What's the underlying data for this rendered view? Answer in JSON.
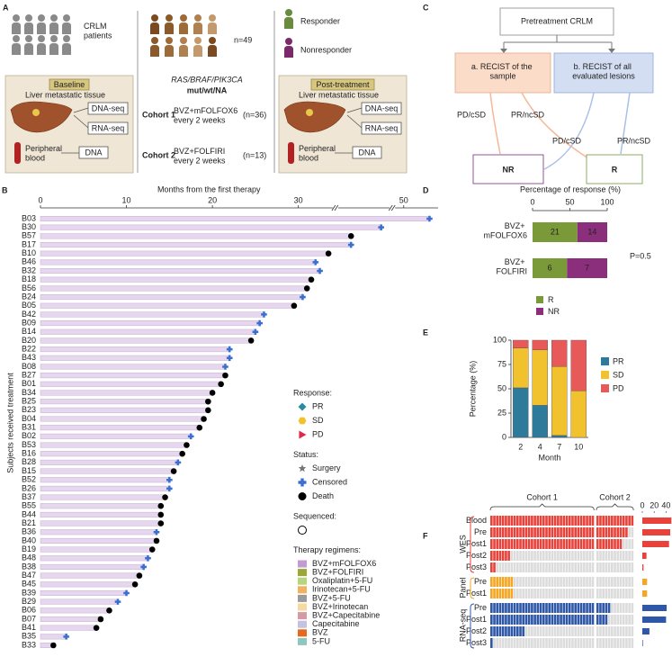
{
  "panel_labels": {
    "a": "A",
    "b": "B",
    "c": "C",
    "d": "D",
    "e": "E",
    "f": "F"
  },
  "panel_a": {
    "patients": "CRLM patients",
    "n": "n=49",
    "responder": "Responder",
    "nonresponder": "Nonresponder",
    "genes": "RAS/BRAF/PIK3CA",
    "status": "mut/wt/NA",
    "cohorts": [
      {
        "name": "Cohort 1",
        "regimen": "BVZ+mFOLFOX6 every 2 weeks",
        "n": "(n=36)"
      },
      {
        "name": "Cohort 2",
        "regimen": "BVZ+FOLFIRI every 2 weeks",
        "n": "(n=13)"
      }
    ],
    "baseline": {
      "title": "Baseline",
      "tissue": "Liver metastatic tissue",
      "dna_seq": "DNA-seq",
      "rna_seq": "RNA-seq",
      "blood": "Peripheral blood",
      "dna": "DNA"
    },
    "post": {
      "title": "Post-treatment",
      "tissue": "Liver metastatic tissue",
      "dna_seq": "DNA-seq",
      "rna_seq": "RNA-seq",
      "blood": "Peripheral blood",
      "dna": "DNA"
    }
  },
  "panel_c": {
    "root": "Pretreatment CRLM",
    "a": "a. RECIST of the sample",
    "b": "b. RECIST of all evaluated lesions",
    "edges": [
      "PD/cSD",
      "PR/ncSD",
      "PD/cSD",
      "PR/ncSD"
    ],
    "nr": "NR",
    "r": "R"
  },
  "chart_data": [
    {
      "type": "swimmer",
      "title": "Months from the first therapy",
      "ylabel": "Subjects received treatment",
      "xlim": [
        0,
        54
      ],
      "xticks": [
        0,
        10,
        20,
        30,
        50
      ],
      "xbreaks": [
        [
          34,
          40
        ],
        [
          46,
          49
        ]
      ],
      "bar_color": "#e6d6ee",
      "subjects": [
        {
          "id": "B03",
          "months": 53,
          "end": "censored"
        },
        {
          "id": "B30",
          "months": 45,
          "end": "censored"
        },
        {
          "id": "B57",
          "months": 41.5,
          "end": "death"
        },
        {
          "id": "B17",
          "months": 41.5,
          "end": "censored"
        },
        {
          "id": "B10",
          "months": 33.5,
          "end": "death"
        },
        {
          "id": "B46",
          "months": 32,
          "end": "censored"
        },
        {
          "id": "B32",
          "months": 32.5,
          "end": "censored"
        },
        {
          "id": "B18",
          "months": 31.5,
          "end": "death"
        },
        {
          "id": "B56",
          "months": 31,
          "end": "death"
        },
        {
          "id": "B24",
          "months": 30.5,
          "end": "censored"
        },
        {
          "id": "B05",
          "months": 29.5,
          "end": "death"
        },
        {
          "id": "B42",
          "months": 26,
          "end": "censored"
        },
        {
          "id": "B09",
          "months": 25.5,
          "end": "censored"
        },
        {
          "id": "B14",
          "months": 25,
          "end": "censored"
        },
        {
          "id": "B20",
          "months": 24.5,
          "end": "death"
        },
        {
          "id": "B22",
          "months": 22,
          "end": "censored"
        },
        {
          "id": "B43",
          "months": 22,
          "end": "censored"
        },
        {
          "id": "B08",
          "months": 21.5,
          "end": "censored"
        },
        {
          "id": "B27",
          "months": 21.5,
          "end": "death"
        },
        {
          "id": "B01",
          "months": 21,
          "end": "death"
        },
        {
          "id": "B34",
          "months": 20,
          "end": "death"
        },
        {
          "id": "B25",
          "months": 19.5,
          "end": "death"
        },
        {
          "id": "B23",
          "months": 19.5,
          "end": "death"
        },
        {
          "id": "B04",
          "months": 19,
          "end": "death"
        },
        {
          "id": "B31",
          "months": 18.5,
          "end": "death"
        },
        {
          "id": "B02",
          "months": 17.5,
          "end": "censored"
        },
        {
          "id": "B53",
          "months": 17,
          "end": "death"
        },
        {
          "id": "B16",
          "months": 16.5,
          "end": "death"
        },
        {
          "id": "B28",
          "months": 16,
          "end": "censored"
        },
        {
          "id": "B15",
          "months": 15.5,
          "end": "death"
        },
        {
          "id": "B52",
          "months": 15,
          "end": "censored"
        },
        {
          "id": "B26",
          "months": 15,
          "end": "censored"
        },
        {
          "id": "B37",
          "months": 14.5,
          "end": "death"
        },
        {
          "id": "B55",
          "months": 14,
          "end": "death"
        },
        {
          "id": "B44",
          "months": 14,
          "end": "death"
        },
        {
          "id": "B21",
          "months": 14,
          "end": "death"
        },
        {
          "id": "B36",
          "months": 13.5,
          "end": "censored"
        },
        {
          "id": "B40",
          "months": 13.5,
          "end": "death"
        },
        {
          "id": "B19",
          "months": 13,
          "end": "death"
        },
        {
          "id": "B48",
          "months": 12.5,
          "end": "censored"
        },
        {
          "id": "B38",
          "months": 12,
          "end": "censored"
        },
        {
          "id": "B47",
          "months": 11.5,
          "end": "death"
        },
        {
          "id": "B45",
          "months": 11,
          "end": "death"
        },
        {
          "id": "B39",
          "months": 10,
          "end": "censored"
        },
        {
          "id": "B29",
          "months": 9,
          "end": "censored"
        },
        {
          "id": "B06",
          "months": 8,
          "end": "death"
        },
        {
          "id": "B07",
          "months": 7,
          "end": "death"
        },
        {
          "id": "B41",
          "months": 6.5,
          "end": "death"
        },
        {
          "id": "B35",
          "months": 3,
          "end": "censored"
        },
        {
          "id": "B33",
          "months": 1.5,
          "end": "death"
        }
      ],
      "legend": [
        {
          "title": "Response:",
          "items": [
            {
              "name": "PR",
              "shape": "diamond",
              "color": "#2a8ca0"
            },
            {
              "name": "SD",
              "shape": "hexagon",
              "color": "#f2c12e"
            },
            {
              "name": "PD",
              "shape": "triangle",
              "color": "#e0284a"
            }
          ]
        },
        {
          "title": "Status:",
          "items": [
            {
              "name": "Surgery",
              "shape": "star",
              "color": "#777777"
            },
            {
              "name": "Censored",
              "shape": "plus",
              "color": "#3a6fd0"
            },
            {
              "name": "Death",
              "shape": "circle",
              "color": "#000000"
            }
          ]
        },
        {
          "title": "Sequenced:",
          "items": [
            {
              "shape": "ring",
              "color": "#000000"
            }
          ]
        },
        {
          "title": "Therapy regimens:",
          "items": [
            {
              "name": "BVZ+mFOLFOX6",
              "shape": "square",
              "color": "#c39bd3"
            },
            {
              "name": "BVZ+FOLFIRI",
              "shape": "square",
              "color": "#9aa83a"
            },
            {
              "name": "Oxaliplatin+5-FU",
              "shape": "square",
              "color": "#b8d47e"
            },
            {
              "name": "Irinotecan+5-FU",
              "shape": "square",
              "color": "#f2b25c"
            },
            {
              "name": "BVZ+5-FU",
              "shape": "square",
              "color": "#9a9a9a"
            },
            {
              "name": "BVZ+Irinotecan",
              "shape": "square",
              "color": "#f7d9a0"
            },
            {
              "name": "BVZ+Capecitabine",
              "shape": "square",
              "color": "#d49aa5"
            },
            {
              "name": "Capecitabine",
              "shape": "square",
              "color": "#c5c1e0"
            },
            {
              "name": "BVZ",
              "shape": "square",
              "color": "#e8681e"
            },
            {
              "name": "5-FU",
              "shape": "square",
              "color": "#8dc7c0"
            }
          ]
        }
      ]
    },
    {
      "type": "barh",
      "title": "Percentage of response (%)",
      "categories": [
        "BVZ+ mFOLFOX6",
        "BVZ+ FOLFIRI"
      ],
      "xlim": [
        0,
        100
      ],
      "xticks": [
        0,
        50,
        100
      ],
      "annotation": "P=0.5",
      "series": [
        {
          "name": "R",
          "color": "#7a9a3a",
          "values": [
            21,
            6
          ]
        },
        {
          "name": "NR",
          "color": "#8b2f7d",
          "values": [
            14,
            7
          ]
        }
      ]
    },
    {
      "type": "bar",
      "ylabel": "Percentage (%)",
      "xlabel": "Month",
      "categories": [
        "2",
        "4",
        "7",
        "10"
      ],
      "ylim": [
        0,
        100
      ],
      "yticks": [
        0,
        25,
        50,
        75,
        100
      ],
      "series": [
        {
          "name": "PR",
          "color": "#2e7a9a",
          "values": [
            51,
            33,
            2,
            0
          ]
        },
        {
          "name": "SD",
          "color": "#f2c12e",
          "values": [
            41,
            57,
            71,
            48
          ]
        },
        {
          "name": "PD",
          "color": "#e85a5a",
          "values": [
            8,
            10,
            27,
            52
          ]
        }
      ]
    },
    {
      "type": "heatmap",
      "empty_color": "#dcdcdc",
      "xlim": [
        0,
        50
      ],
      "xticks": [
        0,
        20,
        40
      ],
      "cohorts": [
        {
          "name": "Cohort 1",
          "columns": 36
        },
        {
          "name": "Cohort 2",
          "columns": 13
        }
      ],
      "groups": [
        {
          "name": "WES",
          "color": "#e8423a",
          "rows": [
            {
              "name": "Blood",
              "value": 49
            },
            {
              "name": "Pre",
              "value": 47
            },
            {
              "name": "Post1",
              "value": 45
            },
            {
              "name": "Post2",
              "value": 7
            },
            {
              "name": "Post3",
              "value": 2
            }
          ]
        },
        {
          "name": "Panel",
          "color": "#f5a623",
          "rows": [
            {
              "name": "Pre",
              "value": 8
            },
            {
              "name": "Post1",
              "value": 8
            }
          ]
        },
        {
          "name": "RNA-seq",
          "color": "#2f57a8",
          "rows": [
            {
              "name": "Pre",
              "value": 41
            },
            {
              "name": "Post1",
              "value": 40
            },
            {
              "name": "Post2",
              "value": 12
            },
            {
              "name": "Post3",
              "value": 1
            }
          ]
        }
      ]
    }
  ]
}
